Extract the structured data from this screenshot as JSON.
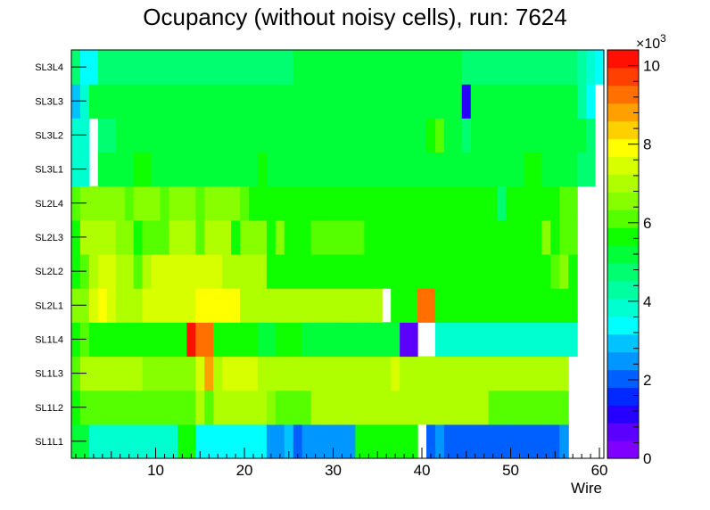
{
  "chart_data": {
    "type": "heatmap",
    "title": "Ocupancy (without noisy cells), run: 7624",
    "xlabel": "Wire",
    "ylabel": "",
    "xlim": [
      0.5,
      60.5
    ],
    "x_ticks": [
      10,
      20,
      30,
      40,
      50,
      60
    ],
    "y_categories": [
      "SL1L1",
      "SL1L2",
      "SL1L3",
      "SL1L4",
      "SL2L1",
      "SL2L2",
      "SL2L3",
      "SL2L4",
      "SL3L1",
      "SL3L2",
      "SL3L3",
      "SL3L4"
    ],
    "zlim": [
      0,
      10400
    ],
    "z_ticks": [
      0,
      2,
      4,
      6,
      8,
      10
    ],
    "z_exponent_label": "×10",
    "z_exponent_power": "3",
    "grid": false,
    "colorbar": "right",
    "rows": [
      {
        "layer": "SL1L1",
        "values": [
          5200,
          5200,
          3700,
          3700,
          3700,
          3700,
          3700,
          3700,
          3700,
          3700,
          3700,
          3700,
          5500,
          5800,
          3400,
          3400,
          3400,
          3400,
          3400,
          3400,
          3400,
          3400,
          2600,
          2600,
          2800,
          2200,
          2600,
          2600,
          2600,
          2600,
          2600,
          2600,
          5500,
          5500,
          5800,
          5800,
          5800,
          5800,
          5800,
          null,
          2200,
          2600,
          2100,
          2100,
          2100,
          2100,
          2100,
          2100,
          2100,
          2100,
          2100,
          2100,
          2100,
          2100,
          2100,
          2600,
          null,
          null,
          null,
          null
        ]
      },
      {
        "layer": "SL1L2",
        "values": [
          5800,
          6300,
          6300,
          6300,
          6300,
          6300,
          6300,
          6300,
          6300,
          6300,
          6300,
          6300,
          6300,
          6300,
          7200,
          6300,
          7200,
          7200,
          7200,
          7200,
          7200,
          7200,
          6500,
          6300,
          6300,
          6300,
          6300,
          6800,
          6800,
          6800,
          6800,
          6800,
          6800,
          6800,
          6800,
          6800,
          6800,
          6800,
          6800,
          6800,
          6800,
          6800,
          6800,
          6800,
          6800,
          6800,
          6800,
          6300,
          6300,
          6300,
          6300,
          6300,
          6300,
          6300,
          6300,
          6300,
          null,
          null,
          null,
          null
        ]
      },
      {
        "layer": "SL1L3",
        "values": [
          6300,
          6800,
          6800,
          6800,
          6800,
          6800,
          6800,
          6800,
          6500,
          6500,
          6500,
          6500,
          6500,
          6500,
          7500,
          8800,
          6800,
          7500,
          7500,
          7500,
          7500,
          7200,
          6800,
          6800,
          6800,
          6800,
          6800,
          6800,
          6800,
          6800,
          6800,
          6800,
          6800,
          6800,
          6800,
          6800,
          7500,
          6800,
          6800,
          6800,
          6800,
          6800,
          6800,
          6800,
          6800,
          6800,
          6800,
          6800,
          6800,
          6800,
          6800,
          6800,
          6800,
          6800,
          6800,
          6800,
          null,
          null,
          null,
          null
        ]
      },
      {
        "layer": "SL1L4",
        "values": [
          5800,
          6300,
          5500,
          5500,
          5500,
          5500,
          5500,
          5500,
          5500,
          5500,
          5500,
          5500,
          5500,
          10100,
          9200,
          9200,
          5700,
          5700,
          5700,
          5700,
          5700,
          5300,
          5300,
          5800,
          5800,
          5800,
          5300,
          5300,
          5300,
          5300,
          5300,
          5300,
          5300,
          5300,
          5300,
          5300,
          5300,
          700,
          700,
          null,
          null,
          3900,
          3900,
          3900,
          3900,
          3900,
          3900,
          3900,
          3900,
          3900,
          3900,
          3700,
          3700,
          3700,
          3700,
          3700,
          3700,
          null,
          null,
          null
        ]
      },
      {
        "layer": "SL2L1",
        "values": [
          6500,
          6500,
          7500,
          7900,
          7500,
          7200,
          7200,
          7200,
          7500,
          7500,
          7500,
          7500,
          7500,
          7500,
          7700,
          7700,
          7700,
          7700,
          7700,
          6800,
          6800,
          6800,
          6800,
          6800,
          6800,
          6800,
          6800,
          6800,
          6800,
          6800,
          6800,
          6800,
          6800,
          6800,
          6800,
          null,
          5500,
          5500,
          5500,
          9200,
          9200,
          5500,
          5800,
          5800,
          5500,
          5500,
          5800,
          5800,
          5800,
          5800,
          5800,
          5800,
          5800,
          5800,
          5800,
          5800,
          5800,
          null,
          null,
          null
        ]
      },
      {
        "layer": "SL2L2",
        "values": [
          5800,
          6300,
          7200,
          7600,
          7600,
          6800,
          6800,
          6300,
          6800,
          7300,
          7300,
          7300,
          7300,
          7300,
          7300,
          7300,
          7300,
          6800,
          6800,
          6800,
          6800,
          6800,
          5800,
          5800,
          5800,
          5800,
          5800,
          5800,
          5800,
          5800,
          5800,
          5800,
          5800,
          5800,
          5800,
          5800,
          5800,
          5800,
          5800,
          5800,
          5800,
          5800,
          5800,
          5800,
          5800,
          5800,
          5800,
          5800,
          5800,
          5800,
          5800,
          5800,
          5800,
          5800,
          6200,
          6700,
          5800,
          null,
          null,
          null
        ]
      },
      {
        "layer": "SL2L3",
        "values": [
          5800,
          6800,
          6800,
          6800,
          6800,
          6500,
          6500,
          5800,
          6300,
          6300,
          6300,
          6800,
          6800,
          6800,
          6300,
          6800,
          6800,
          6800,
          5800,
          6500,
          6500,
          6500,
          5800,
          6500,
          5800,
          5800,
          5800,
          6300,
          6300,
          6300,
          6300,
          6300,
          6300,
          5800,
          5800,
          5800,
          5800,
          5800,
          5800,
          5800,
          5800,
          5800,
          5800,
          5800,
          5800,
          5800,
          5800,
          5800,
          5800,
          5800,
          5800,
          5800,
          5800,
          6500,
          5800,
          6300,
          6300,
          null,
          null,
          null
        ]
      },
      {
        "layer": "SL2L4",
        "values": [
          6200,
          6500,
          6500,
          6500,
          6500,
          6500,
          6200,
          6500,
          6500,
          6500,
          6300,
          6500,
          6500,
          6500,
          6200,
          6500,
          6500,
          6500,
          6500,
          6200,
          5800,
          5800,
          5800,
          5800,
          5800,
          5800,
          5800,
          5800,
          5800,
          5800,
          5800,
          5800,
          5800,
          5800,
          5800,
          5800,
          5800,
          5800,
          5800,
          5800,
          5800,
          5800,
          5800,
          5800,
          5800,
          5800,
          5800,
          5800,
          4600,
          5800,
          5800,
          5800,
          5800,
          5800,
          5800,
          6300,
          6300,
          null,
          null,
          null
        ]
      },
      {
        "layer": "SL3L1",
        "values": [
          3700,
          3700,
          null,
          5300,
          5300,
          5300,
          5300,
          5500,
          5500,
          5300,
          5300,
          5300,
          5300,
          5300,
          5300,
          5300,
          5300,
          5300,
          5300,
          5300,
          5300,
          5800,
          5300,
          5300,
          5300,
          5300,
          5300,
          5300,
          5300,
          5300,
          5300,
          5300,
          5300,
          5300,
          5300,
          5300,
          5300,
          5300,
          5300,
          5300,
          5300,
          5300,
          5300,
          5300,
          5300,
          5300,
          5300,
          5300,
          5300,
          5300,
          5300,
          5800,
          5800,
          5300,
          5300,
          5300,
          5300,
          4800,
          4800,
          null
        ]
      },
      {
        "layer": "SL3L2",
        "values": [
          3700,
          3700,
          null,
          4600,
          4600,
          5300,
          5300,
          5300,
          5300,
          5300,
          5300,
          5300,
          5300,
          5000,
          5000,
          5000,
          5300,
          5300,
          5300,
          5300,
          5300,
          5300,
          5300,
          5000,
          5000,
          5300,
          5300,
          5300,
          5300,
          5000,
          5000,
          5000,
          5000,
          5000,
          5300,
          5300,
          5300,
          5300,
          5300,
          5300,
          5600,
          6300,
          5300,
          5300,
          4800,
          5300,
          5300,
          5300,
          5300,
          5300,
          5300,
          5300,
          5300,
          5300,
          5300,
          5000,
          5000,
          5300,
          4600,
          null
        ]
      },
      {
        "layer": "SL3L3",
        "values": [
          3000,
          3700,
          5000,
          5000,
          5000,
          5000,
          5000,
          5000,
          5000,
          5000,
          5000,
          5000,
          5000,
          5000,
          5000,
          5000,
          5000,
          5000,
          5000,
          5000,
          5000,
          5000,
          5000,
          5000,
          5000,
          5000,
          5000,
          5000,
          5000,
          5000,
          5000,
          5000,
          5000,
          5000,
          5000,
          5000,
          5000,
          5000,
          5000,
          5000,
          5000,
          5000,
          5000,
          5000,
          1000,
          5000,
          5000,
          5000,
          5000,
          5000,
          5000,
          5000,
          5000,
          5000,
          5000,
          5000,
          5000,
          4300,
          3300,
          null
        ]
      },
      {
        "layer": "SL3L4",
        "values": [
          4800,
          3300,
          3300,
          4600,
          4800,
          4800,
          4600,
          4800,
          4600,
          4600,
          4800,
          4800,
          4800,
          4600,
          4800,
          4800,
          4800,
          4800,
          4800,
          4800,
          4800,
          4800,
          4800,
          4800,
          4800,
          5000,
          5000,
          5000,
          5000,
          5000,
          5000,
          5000,
          5000,
          5000,
          5000,
          5000,
          5000,
          5000,
          5000,
          5000,
          5000,
          5000,
          5000,
          5000,
          4800,
          4600,
          4600,
          4800,
          4800,
          4800,
          4800,
          4800,
          4800,
          4800,
          4800,
          4800,
          4800,
          4300,
          3700,
          3300
        ]
      }
    ]
  }
}
